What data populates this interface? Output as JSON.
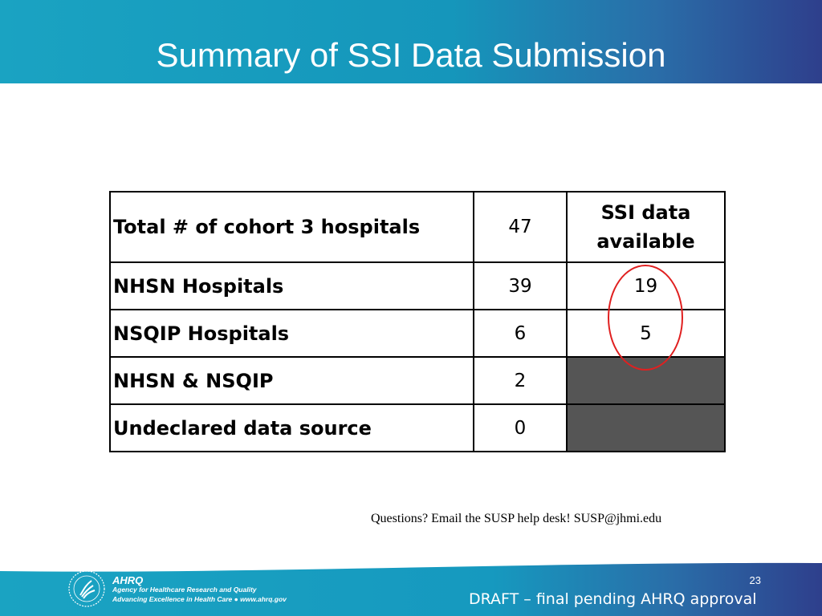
{
  "slide": {
    "title": "Summary of SSI Data Submission",
    "slide_number": "23",
    "draft_notice": "DRAFT – final pending AHRQ approval",
    "contact_note": "Questions? Email the SUSP help desk! SUSP@jhmi.edu"
  },
  "logo": {
    "name": "AHRQ",
    "agency": "Agency for Healthcare Research and Quality",
    "tagline": "Advancing Excellence in Health Care ● www.ahrq.gov"
  },
  "table": {
    "header": {
      "label": "Total # of cohort 3 hospitals",
      "count": "47",
      "ssi_line1": "SSI data",
      "ssi_line2": "available"
    },
    "rows": [
      {
        "label": "NHSN Hospitals",
        "count": "39",
        "ssi": "19"
      },
      {
        "label": "NSQIP Hospitals",
        "count": "6",
        "ssi": "5"
      },
      {
        "label": "NHSN & NSQIP",
        "count": "2",
        "ssi": ""
      },
      {
        "label": "Undeclared data source",
        "count": "0",
        "ssi": ""
      }
    ]
  },
  "colors": {
    "header_teal": "#1aa3c2",
    "header_navy": "#2e3f8c",
    "filled_cell": "#555555",
    "highlight": "#e02020"
  }
}
